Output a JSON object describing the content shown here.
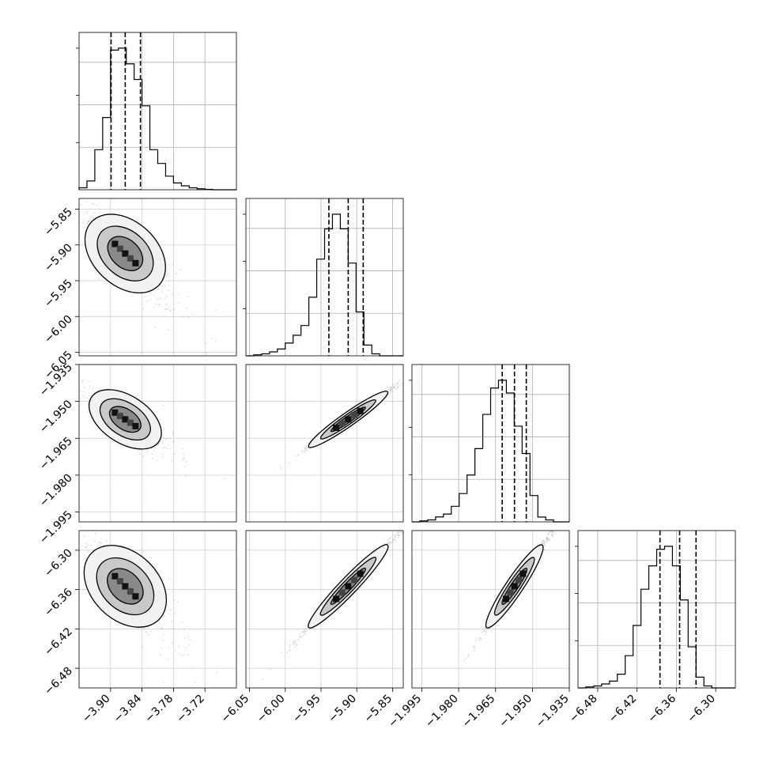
{
  "chart_data": {
    "type": "corner",
    "title": "",
    "variables": [
      {
        "range": [
          -3.96,
          -3.66
        ],
        "ticks": [
          -3.9,
          -3.84,
          -3.78,
          -3.72
        ],
        "tick_labels": [
          "−3.90",
          "−3.84",
          "−3.78",
          "−3.72"
        ],
        "quantiles": [
          -3.899,
          -3.872,
          -3.843
        ],
        "hist_bins": [
          0.014,
          0.062,
          0.283,
          0.51,
          0.986,
          1.0,
          0.889,
          0.779,
          0.593,
          0.283,
          0.186,
          0.096,
          0.048,
          0.028,
          0.014,
          0.007,
          0.003,
          0.0,
          0.0,
          0.0
        ],
        "median": -3.872
      },
      {
        "range": [
          -6.055,
          -5.835
        ],
        "ticks": [
          -6.05,
          -6.0,
          -5.95,
          -5.9,
          -5.85
        ],
        "tick_labels": [
          "−6.05",
          "−6.00",
          "−5.95",
          "−5.90",
          "−5.85"
        ],
        "quantiles": [
          -5.939,
          -5.912,
          -5.891
        ],
        "hist_bins": [
          0.0,
          0.007,
          0.014,
          0.028,
          0.048,
          0.09,
          0.145,
          0.214,
          0.414,
          0.683,
          0.897,
          1.0,
          0.897,
          0.655,
          0.31,
          0.076,
          0.014,
          0.0,
          0.0,
          0.0
        ],
        "median": -5.912
      },
      {
        "range": [
          -1.999,
          -1.935
        ],
        "ticks": [
          -1.995,
          -1.98,
          -1.965,
          -1.95,
          -1.935
        ],
        "tick_labels": [
          "−1.995",
          "−1.980",
          "−1.965",
          "−1.950",
          "−1.935"
        ],
        "quantiles": [
          -1.9623,
          -1.9573,
          -1.9525
        ],
        "hist_bins": [
          0.0,
          0.007,
          0.014,
          0.035,
          0.055,
          0.11,
          0.2,
          0.331,
          0.517,
          0.759,
          0.945,
          1.0,
          0.91,
          0.676,
          0.483,
          0.186,
          0.034,
          0.014,
          0.0,
          0.0
        ],
        "median": -1.9573
      },
      {
        "range": [
          -6.51,
          -6.27
        ],
        "ticks": [
          -6.48,
          -6.42,
          -6.36,
          -6.3
        ],
        "tick_labels": [
          "−6.48",
          "−6.42",
          "−6.36",
          "−6.30"
        ],
        "quantiles": [
          -6.385,
          -6.355,
          -6.33
        ],
        "hist_bins": [
          0.0,
          0.007,
          0.014,
          0.028,
          0.048,
          0.097,
          0.228,
          0.441,
          0.697,
          0.862,
          0.979,
          1.0,
          0.862,
          0.621,
          0.29,
          0.076,
          0.014,
          0.0,
          0.0,
          0.0
        ],
        "median": -6.355
      }
    ],
    "pair_corr": {
      "1-0": -0.8,
      "2-0": -0.8,
      "3-0": -0.8,
      "2-1": 0.995,
      "3-1": 0.995,
      "3-2": 0.995
    },
    "grid": true
  }
}
